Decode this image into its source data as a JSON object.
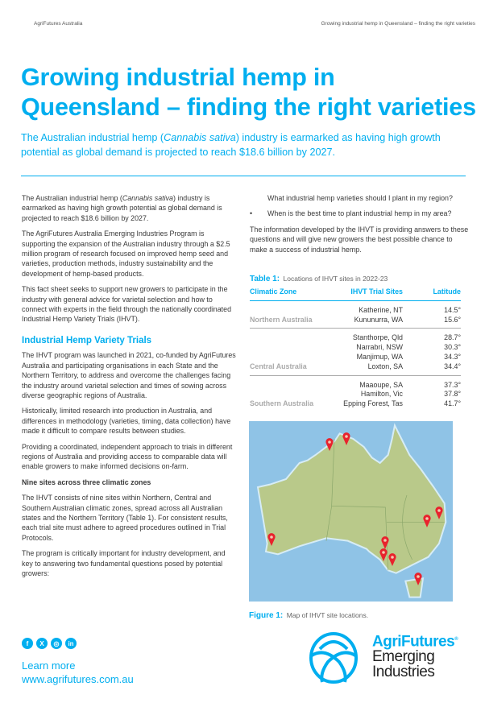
{
  "header": {
    "left": "AgriFutures Australia",
    "right": "Growing industrial hemp in Queensland – finding the right varieties"
  },
  "title_line1": "Growing industrial hemp in",
  "title_line2": "Queensland – finding the right varieties",
  "subtitle": {
    "pre": "The Australian industrial hemp (",
    "italic": "Cannabis sativa",
    "post": ") industry is earmarked as having high growth potential as global demand is projected to reach $18.6 billion by 2027."
  },
  "left": {
    "p1": {
      "pre": "The Australian industrial hemp (",
      "italic": "Cannabis sativa",
      "post": ") industry is earmarked as having high growth potential as global demand is projected to reach $18.6 billion by 2027."
    },
    "p2": "The AgriFutures Australia Emerging Industries Program is supporting the expansion of the Australian industry through a $2.5 million program of research focused on improved hemp seed and varieties, production methods, industry sustainability and the development of hemp-based products.",
    "p3": "This fact sheet seeks to support new growers to participate in the industry with general advice for varietal selection and how to connect with experts in the field through the nationally coordinated Industrial Hemp Variety Trials (IHVT).",
    "h2": "Industrial Hemp Variety Trials",
    "p4": "The IHVT program was launched in 2021, co-funded by AgriFutures Australia and participating organisations in each State and the Northern Territory, to address and overcome the challenges facing the industry around varietal selection and times of sowing across diverse geographic regions of Australia.",
    "p5": "Historically, limited research into production in Australia, and differences in methodology (varieties, timing, data collection) have made it difficult to compare results between studies.",
    "p6": "Providing a coordinated, independent approach to trials in different regions of Australia and providing access to comparable data will enable growers to make informed decisions on-farm.",
    "h3": "Nine sites across three climatic zones",
    "p7": "The IHVT consists of nine sites within Northern, Central and Southern Australian climatic zones, spread across all Australian states and the Northern Territory (Table 1). For consistent results, each trial site must adhere to agreed procedures outlined in Trial Protocols.",
    "p8": "The program is critically important for industry development, and key to answering two fundamental questions posed by potential growers:"
  },
  "right": {
    "q1": "What industrial hemp varieties should I plant in my region?",
    "q2": "When is the best time to plant industrial hemp in my area?",
    "bullet": "•",
    "p1": "The information developed by the IHVT is providing answers to these questions and will give new growers the best possible chance to make a success of industrial hemp."
  },
  "table": {
    "caption_label": "Table 1:",
    "caption": "Locations of IHVT sites in 2022-23",
    "headers": [
      "Climatic Zone",
      "IHVT Trial Sites",
      "Latitude"
    ],
    "groups": [
      {
        "zone": "Northern Australia",
        "rows": [
          [
            "Katherine, NT",
            "14.5°"
          ],
          [
            "Kununurra, WA",
            "15.6°"
          ]
        ]
      },
      {
        "zone": "Central Australia",
        "rows": [
          [
            "Stanthorpe, Qld",
            "28.7°"
          ],
          [
            "Narrabri, NSW",
            "30.3°"
          ],
          [
            "Manjimup, WA",
            "34.3°"
          ],
          [
            "Loxton, SA",
            "34.4°"
          ]
        ]
      },
      {
        "zone": "Southern Australia",
        "rows": [
          [
            "Maaoupe, SA",
            "37.3°"
          ],
          [
            "Hamilton, Vic",
            "37.8°"
          ],
          [
            "Epping Forest, Tas",
            "41.7°"
          ]
        ]
      }
    ]
  },
  "figure": {
    "label": "Figure 1:",
    "caption": "Map of IHVT site locations.",
    "pin_color": "#e8222d",
    "land_color": "#b9c98a",
    "ocean_color": "#8fc3e6"
  },
  "footer": {
    "social": [
      {
        "icon": "facebook-icon",
        "glyph": "f"
      },
      {
        "icon": "x-icon",
        "glyph": "X"
      },
      {
        "icon": "instagram-icon",
        "glyph": "◎"
      },
      {
        "icon": "linkedin-icon",
        "glyph": "in"
      }
    ],
    "learn": "Learn more",
    "url": "www.agrifutures.com.au",
    "logo": {
      "line1": "AgriFutures",
      "reg": "®",
      "line2": "Emerging",
      "line3": "Industries"
    }
  },
  "colors": {
    "accent": "#00aeef",
    "text": "#3a3a3a"
  }
}
